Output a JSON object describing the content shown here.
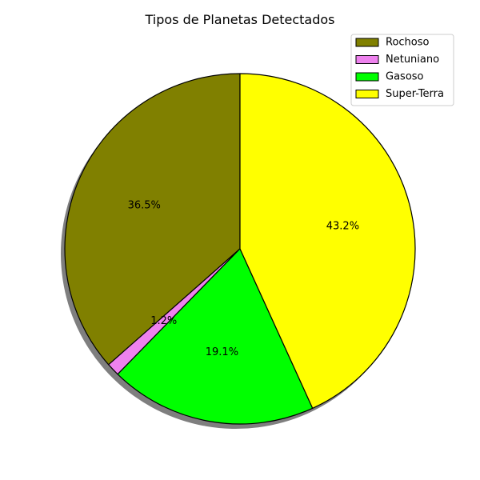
{
  "chart_data": {
    "type": "pie",
    "title": "Tipos de Planetas Detectados",
    "categories": [
      "Rochoso",
      "Netuniano",
      "Gasoso",
      "Super-Terra"
    ],
    "values": [
      36.5,
      1.2,
      19.1,
      43.2
    ],
    "labels": [
      "36.5%",
      "1.2%",
      "19.1%",
      "43.2%"
    ],
    "colors": [
      "#808000",
      "#ee82ee",
      "#00ff00",
      "#ffff00"
    ],
    "start_angle_deg": 90,
    "direction": "counterclockwise",
    "shadow": true,
    "edgecolor": "#000000",
    "legend": {
      "position": "top-right",
      "entries": [
        "Rochoso",
        "Netuniano",
        "Gasoso",
        "Super-Terra"
      ]
    }
  }
}
